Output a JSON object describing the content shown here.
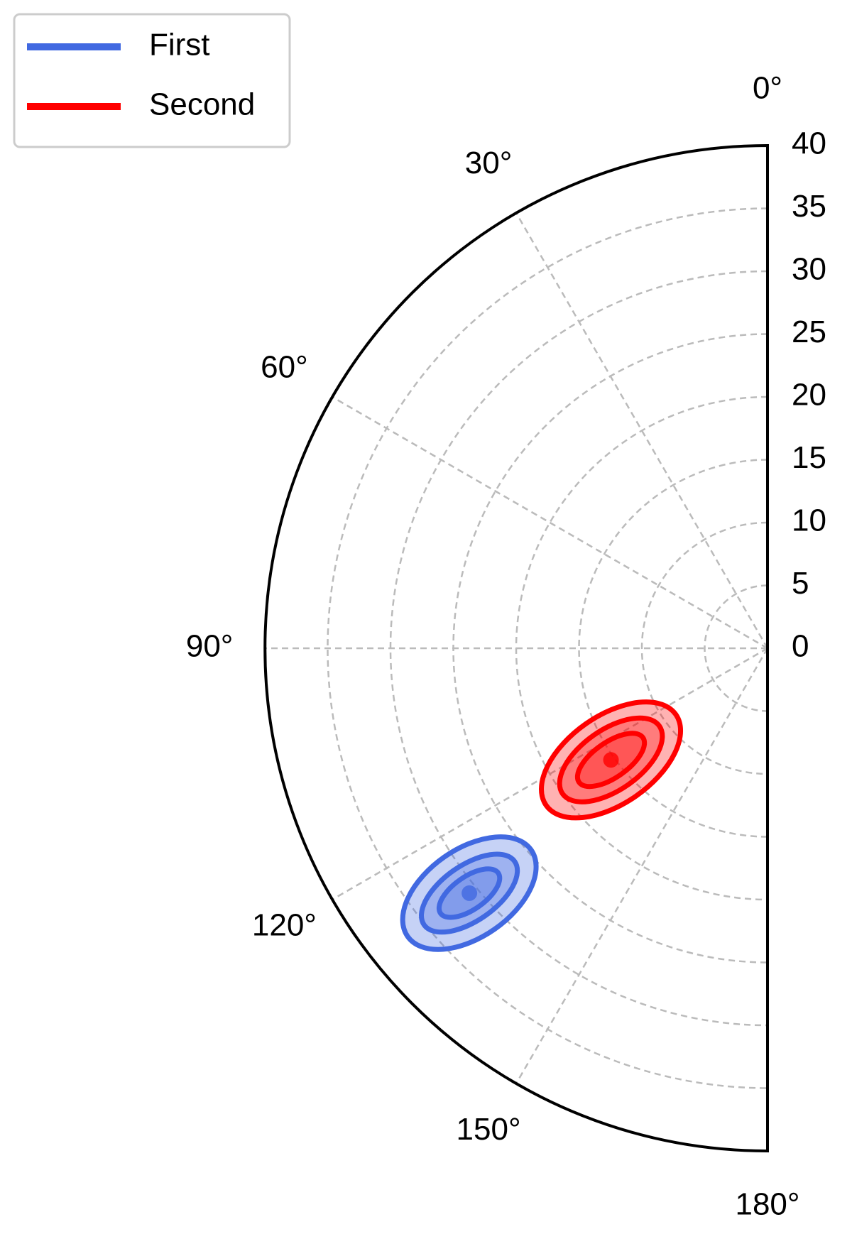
{
  "chart_data": {
    "type": "polar-contour",
    "thetalim": [
      0,
      180
    ],
    "rlim": [
      0,
      40
    ],
    "thetaticks": [
      {
        "value": 0,
        "label": "0°"
      },
      {
        "value": 30,
        "label": "30°"
      },
      {
        "value": 60,
        "label": "60°"
      },
      {
        "value": 90,
        "label": "90°"
      },
      {
        "value": 120,
        "label": "120°"
      },
      {
        "value": 150,
        "label": "150°"
      },
      {
        "value": 180,
        "label": "180°"
      }
    ],
    "rticks": [
      0,
      5,
      10,
      15,
      20,
      25,
      30,
      35,
      40
    ],
    "grid": true,
    "legend": "upper left",
    "series": [
      {
        "name": "First",
        "color": "#4169e1",
        "theta": 129.4,
        "r": 30.7,
        "tilt": 35,
        "contours": [
          {
            "semi_major": 6.0,
            "semi_minor": 3.5
          },
          {
            "semi_major": 4.4,
            "semi_minor": 2.2
          },
          {
            "semi_major": 2.8,
            "semi_minor": 1.3
          }
        ]
      },
      {
        "name": "Second",
        "color": "#ff0000",
        "theta": 125.5,
        "r": 15.3,
        "tilt": 35,
        "contours": [
          {
            "semi_major": 6.3,
            "semi_minor": 3.5
          },
          {
            "semi_major": 4.7,
            "semi_minor": 2.4
          },
          {
            "semi_major": 3.1,
            "semi_minor": 1.4
          }
        ]
      }
    ]
  }
}
